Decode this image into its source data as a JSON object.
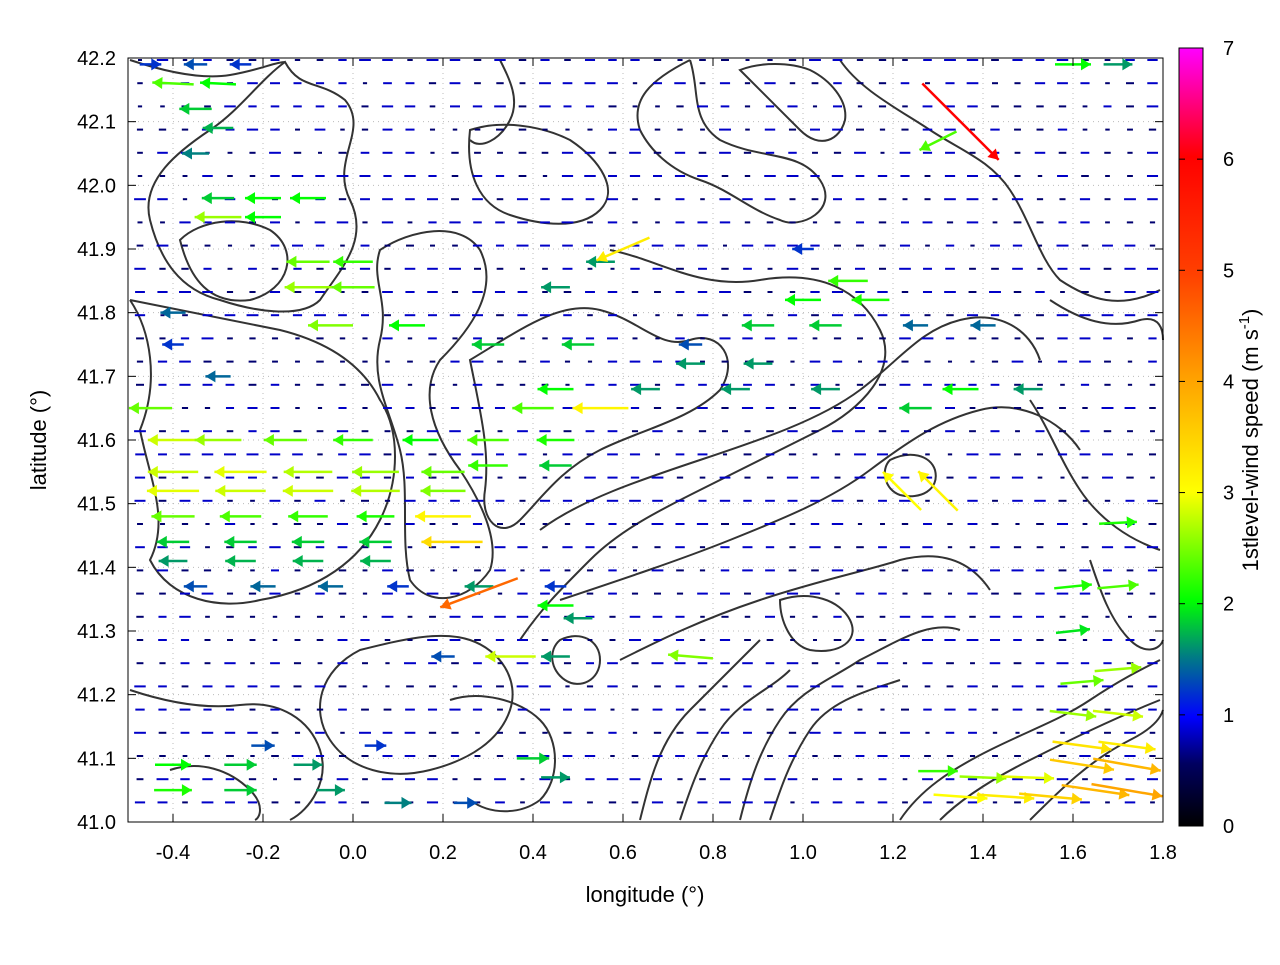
{
  "chart_data": {
    "type": "vector-field",
    "xlabel": "longitude (°)",
    "ylabel": "latitude (°)",
    "colorbar_label": "1stlevel-wind speed (m s",
    "colorbar_label_sup": "-1",
    "colorbar_label_close": ")",
    "xlim": [
      -0.5,
      1.8
    ],
    "ylim": [
      41.0,
      42.2
    ],
    "xticks": [
      "-0.4",
      "-0.2",
      "0.0",
      "0.2",
      "0.4",
      "0.6",
      "0.8",
      "1.0",
      "1.2",
      "1.4",
      "1.6",
      "1.8"
    ],
    "xtick_values": [
      -0.4,
      -0.2,
      0.0,
      0.2,
      0.4,
      0.6,
      0.8,
      1.0,
      1.2,
      1.4,
      1.6,
      1.8
    ],
    "yticks": [
      "41.0",
      "41.1",
      "41.2",
      "41.3",
      "41.4",
      "41.5",
      "41.6",
      "41.7",
      "41.8",
      "41.9",
      "42.0",
      "42.1",
      "42.2"
    ],
    "ytick_values": [
      41.0,
      41.1,
      41.2,
      41.3,
      41.4,
      41.5,
      41.6,
      41.7,
      41.8,
      41.9,
      42.0,
      42.1,
      42.2
    ],
    "colorbar_ticks": [
      "0",
      "1",
      "2",
      "3",
      "4",
      "5",
      "6",
      "7"
    ],
    "colorbar_range": [
      0,
      7
    ],
    "colormap": [
      "#000000",
      "#000080",
      "#0000ff",
      "#008080",
      "#00ff00",
      "#ffff00",
      "#ffa500",
      "#ff4000",
      "#ff0000",
      "#ff00ff"
    ],
    "grid": true,
    "contour_color": "#333333",
    "vectors": [
      {
        "x": -0.45,
        "y": 42.19,
        "u": 1.2,
        "v": 0,
        "s": 1.2
      },
      {
        "x": -0.35,
        "y": 42.19,
        "u": -1.3,
        "v": 0,
        "s": 1.3
      },
      {
        "x": -0.25,
        "y": 42.19,
        "u": -1.2,
        "v": 0,
        "s": 1.2
      },
      {
        "x": -0.4,
        "y": 42.16,
        "u": -2.2,
        "v": 0.1,
        "s": 2.3
      },
      {
        "x": -0.3,
        "y": 42.16,
        "u": -2.0,
        "v": 0.1,
        "s": 2.0
      },
      {
        "x": -0.35,
        "y": 42.12,
        "u": -1.8,
        "v": 0,
        "s": 1.8
      },
      {
        "x": -0.3,
        "y": 42.09,
        "u": -1.6,
        "v": 0,
        "s": 1.7
      },
      {
        "x": -0.35,
        "y": 42.05,
        "u": -1.5,
        "v": 0,
        "s": 1.5
      },
      {
        "x": -0.3,
        "y": 41.98,
        "u": -1.8,
        "v": 0,
        "s": 1.8
      },
      {
        "x": -0.2,
        "y": 41.98,
        "u": -2.0,
        "v": 0,
        "s": 2.0
      },
      {
        "x": -0.1,
        "y": 41.98,
        "u": -2.0,
        "v": 0,
        "s": 2.0
      },
      {
        "x": -0.3,
        "y": 41.95,
        "u": -2.5,
        "v": 0,
        "s": 2.6
      },
      {
        "x": -0.2,
        "y": 41.95,
        "u": -2.0,
        "v": 0,
        "s": 2.0
      },
      {
        "x": -0.1,
        "y": 41.88,
        "u": -2.4,
        "v": 0,
        "s": 2.4
      },
      {
        "x": 0.0,
        "y": 41.88,
        "u": -2.2,
        "v": 0,
        "s": 2.2
      },
      {
        "x": -0.1,
        "y": 41.84,
        "u": -2.6,
        "v": 0,
        "s": 2.6
      },
      {
        "x": 0.0,
        "y": 41.84,
        "u": -2.4,
        "v": 0,
        "s": 2.4
      },
      {
        "x": -0.05,
        "y": 41.78,
        "u": -2.5,
        "v": 0,
        "s": 2.5
      },
      {
        "x": 0.12,
        "y": 41.78,
        "u": -2.0,
        "v": 0,
        "s": 2.0
      },
      {
        "x": -0.4,
        "y": 41.6,
        "u": -2.8,
        "v": 0,
        "s": 2.8
      },
      {
        "x": -0.3,
        "y": 41.6,
        "u": -2.6,
        "v": 0,
        "s": 2.6
      },
      {
        "x": -0.15,
        "y": 41.6,
        "u": -2.4,
        "v": 0,
        "s": 2.4
      },
      {
        "x": 0.0,
        "y": 41.6,
        "u": -2.2,
        "v": 0,
        "s": 2.2
      },
      {
        "x": 0.15,
        "y": 41.6,
        "u": -2.0,
        "v": 0,
        "s": 2.0
      },
      {
        "x": -0.4,
        "y": 41.55,
        "u": -2.8,
        "v": 0,
        "s": 2.8
      },
      {
        "x": -0.25,
        "y": 41.55,
        "u": -2.9,
        "v": 0,
        "s": 2.9
      },
      {
        "x": -0.1,
        "y": 41.55,
        "u": -2.7,
        "v": 0,
        "s": 2.7
      },
      {
        "x": 0.05,
        "y": 41.55,
        "u": -2.6,
        "v": 0,
        "s": 2.6
      },
      {
        "x": 0.2,
        "y": 41.55,
        "u": -2.4,
        "v": 0,
        "s": 2.4
      },
      {
        "x": -0.4,
        "y": 41.52,
        "u": -2.9,
        "v": 0,
        "s": 2.9
      },
      {
        "x": -0.25,
        "y": 41.52,
        "u": -2.8,
        "v": 0,
        "s": 2.8
      },
      {
        "x": -0.1,
        "y": 41.52,
        "u": -2.8,
        "v": 0,
        "s": 2.8
      },
      {
        "x": 0.05,
        "y": 41.52,
        "u": -2.7,
        "v": 0,
        "s": 2.7
      },
      {
        "x": 0.2,
        "y": 41.52,
        "u": -2.5,
        "v": 0,
        "s": 2.5
      },
      {
        "x": -0.4,
        "y": 41.48,
        "u": -2.4,
        "v": 0,
        "s": 2.4
      },
      {
        "x": -0.25,
        "y": 41.48,
        "u": -2.3,
        "v": 0,
        "s": 2.3
      },
      {
        "x": -0.1,
        "y": 41.48,
        "u": -2.2,
        "v": 0,
        "s": 2.2
      },
      {
        "x": 0.05,
        "y": 41.48,
        "u": -2.1,
        "v": 0,
        "s": 2.1
      },
      {
        "x": 0.2,
        "y": 41.48,
        "u": -3.1,
        "v": 0,
        "s": 3.1
      },
      {
        "x": -0.4,
        "y": 41.44,
        "u": -1.8,
        "v": 0,
        "s": 1.8
      },
      {
        "x": -0.25,
        "y": 41.44,
        "u": -1.8,
        "v": 0,
        "s": 1.8
      },
      {
        "x": -0.1,
        "y": 41.44,
        "u": -1.8,
        "v": 0,
        "s": 1.8
      },
      {
        "x": 0.05,
        "y": 41.44,
        "u": -1.8,
        "v": 0,
        "s": 1.8
      },
      {
        "x": 0.22,
        "y": 41.44,
        "u": -3.3,
        "v": 0,
        "s": 3.4
      },
      {
        "x": -0.4,
        "y": 41.41,
        "u": -1.6,
        "v": 0,
        "s": 1.6
      },
      {
        "x": -0.25,
        "y": 41.41,
        "u": -1.7,
        "v": 0,
        "s": 1.7
      },
      {
        "x": -0.1,
        "y": 41.41,
        "u": -1.7,
        "v": 0,
        "s": 1.7
      },
      {
        "x": 0.05,
        "y": 41.41,
        "u": -1.7,
        "v": 0,
        "s": 1.7
      },
      {
        "x": -0.35,
        "y": 41.37,
        "u": -1.3,
        "v": 0,
        "s": 1.3
      },
      {
        "x": -0.2,
        "y": 41.37,
        "u": -1.4,
        "v": 0,
        "s": 1.4
      },
      {
        "x": -0.05,
        "y": 41.37,
        "u": -1.4,
        "v": 0,
        "s": 1.4
      },
      {
        "x": 0.1,
        "y": 41.37,
        "u": -1.2,
        "v": 0,
        "s": 1.2
      },
      {
        "x": 0.28,
        "y": 41.37,
        "u": -1.6,
        "v": 0,
        "s": 1.6
      },
      {
        "x": 0.45,
        "y": 41.37,
        "u": -1.2,
        "v": 0,
        "s": 1.2
      },
      {
        "x": 0.28,
        "y": 41.36,
        "u": -1.6,
        "v": -0.6,
        "s": 4.6
      },
      {
        "x": 0.3,
        "y": 41.75,
        "u": -1.8,
        "v": 0,
        "s": 1.8
      },
      {
        "x": 0.5,
        "y": 41.75,
        "u": -1.8,
        "v": 0,
        "s": 1.8
      },
      {
        "x": 0.45,
        "y": 41.68,
        "u": -2.0,
        "v": 0,
        "s": 2.0
      },
      {
        "x": 0.65,
        "y": 41.68,
        "u": -1.6,
        "v": 0,
        "s": 1.6
      },
      {
        "x": 0.4,
        "y": 41.65,
        "u": -2.3,
        "v": 0,
        "s": 2.3
      },
      {
        "x": 0.55,
        "y": 41.65,
        "u": -3.0,
        "v": 0,
        "s": 3.1
      },
      {
        "x": 0.3,
        "y": 41.6,
        "u": -2.3,
        "v": 0,
        "s": 2.3
      },
      {
        "x": 0.45,
        "y": 41.6,
        "u": -2.1,
        "v": 0,
        "s": 2.1
      },
      {
        "x": 0.3,
        "y": 41.56,
        "u": -2.2,
        "v": 0,
        "s": 2.2
      },
      {
        "x": 0.45,
        "y": 41.56,
        "u": -1.8,
        "v": 0,
        "s": 1.8
      },
      {
        "x": 0.55,
        "y": 41.88,
        "u": -1.6,
        "v": 0,
        "s": 1.6
      },
      {
        "x": 0.45,
        "y": 41.84,
        "u": -1.6,
        "v": 0,
        "s": 1.6
      },
      {
        "x": 0.6,
        "y": 41.9,
        "u": -0.7,
        "v": -0.3,
        "s": 3.2
      },
      {
        "x": 0.75,
        "y": 41.75,
        "u": -1.3,
        "v": 0,
        "s": 1.3
      },
      {
        "x": 0.75,
        "y": 41.72,
        "u": -1.6,
        "v": 0,
        "s": 1.6
      },
      {
        "x": 0.9,
        "y": 41.72,
        "u": -1.6,
        "v": 0,
        "s": 1.6
      },
      {
        "x": 0.85,
        "y": 41.68,
        "u": -1.6,
        "v": 0,
        "s": 1.6
      },
      {
        "x": 1.05,
        "y": 41.68,
        "u": -1.6,
        "v": 0,
        "s": 1.6
      },
      {
        "x": 0.9,
        "y": 41.78,
        "u": -1.8,
        "v": 0,
        "s": 1.8
      },
      {
        "x": 1.05,
        "y": 41.78,
        "u": -1.8,
        "v": 0,
        "s": 1.8
      },
      {
        "x": 1.25,
        "y": 41.78,
        "u": -1.4,
        "v": 0,
        "s": 1.4
      },
      {
        "x": 1.4,
        "y": 41.78,
        "u": -1.4,
        "v": 0,
        "s": 1.4
      },
      {
        "x": 1.0,
        "y": 41.82,
        "u": -2.0,
        "v": 0,
        "s": 2.0
      },
      {
        "x": 1.15,
        "y": 41.82,
        "u": -2.1,
        "v": 0,
        "s": 2.1
      },
      {
        "x": 1.0,
        "y": 41.9,
        "u": -1.2,
        "v": 0,
        "s": 1.2
      },
      {
        "x": 1.1,
        "y": 41.85,
        "u": -2.2,
        "v": 0,
        "s": 2.2
      },
      {
        "x": 1.25,
        "y": 41.65,
        "u": -1.8,
        "v": 0,
        "s": 1.8
      },
      {
        "x": 1.35,
        "y": 41.68,
        "u": -2.0,
        "v": 0,
        "s": 2.0
      },
      {
        "x": 1.5,
        "y": 41.68,
        "u": -1.6,
        "v": 0,
        "s": 1.6
      },
      {
        "x": 1.35,
        "y": 42.1,
        "u": 0.6,
        "v": -0.6,
        "s": 6.0
      },
      {
        "x": 1.3,
        "y": 42.07,
        "u": -0.2,
        "v": -0.1,
        "s": 2.3
      },
      {
        "x": 1.3,
        "y": 41.52,
        "u": -0.2,
        "v": 0.2,
        "s": 3.1
      },
      {
        "x": 1.22,
        "y": 41.52,
        "u": -0.2,
        "v": 0.2,
        "s": 3.0
      },
      {
        "x": -0.4,
        "y": 41.09,
        "u": 2.0,
        "v": 0,
        "s": 2.0
      },
      {
        "x": -0.25,
        "y": 41.09,
        "u": 1.8,
        "v": 0,
        "s": 1.8
      },
      {
        "x": -0.1,
        "y": 41.09,
        "u": 1.6,
        "v": 0,
        "s": 1.6
      },
      {
        "x": -0.4,
        "y": 41.05,
        "u": 2.1,
        "v": 0,
        "s": 2.1
      },
      {
        "x": -0.25,
        "y": 41.05,
        "u": 1.8,
        "v": 0,
        "s": 1.8
      },
      {
        "x": -0.05,
        "y": 41.05,
        "u": 1.6,
        "v": 0,
        "s": 1.6
      },
      {
        "x": 0.1,
        "y": 41.03,
        "u": 1.5,
        "v": 0,
        "s": 1.5
      },
      {
        "x": 0.25,
        "y": 41.03,
        "u": 1.3,
        "v": 0,
        "s": 1.3
      },
      {
        "x": 0.05,
        "y": 41.12,
        "u": 1.2,
        "v": 0,
        "s": 1.2
      },
      {
        "x": -0.2,
        "y": 41.12,
        "u": 1.3,
        "v": 0,
        "s": 1.3
      },
      {
        "x": 0.4,
        "y": 41.1,
        "u": 1.8,
        "v": 0,
        "s": 1.8
      },
      {
        "x": 0.45,
        "y": 41.07,
        "u": 1.6,
        "v": 0,
        "s": 1.6
      },
      {
        "x": 1.3,
        "y": 41.08,
        "u": 2.2,
        "v": 0,
        "s": 2.2
      },
      {
        "x": 1.4,
        "y": 41.07,
        "u": 2.5,
        "v": -0.1,
        "s": 2.6
      },
      {
        "x": 1.5,
        "y": 41.07,
        "u": 2.8,
        "v": -0.1,
        "s": 2.9
      },
      {
        "x": 1.35,
        "y": 41.04,
        "u": 2.8,
        "v": -0.2,
        "s": 3.0
      },
      {
        "x": 1.45,
        "y": 41.04,
        "u": 3.0,
        "v": -0.2,
        "s": 3.2
      },
      {
        "x": 1.55,
        "y": 41.04,
        "u": 3.2,
        "v": -0.3,
        "s": 3.5
      },
      {
        "x": 1.65,
        "y": 41.05,
        "u": 3.4,
        "v": -0.5,
        "s": 3.8
      },
      {
        "x": 1.72,
        "y": 41.05,
        "u": 3.5,
        "v": -0.6,
        "s": 4.0
      },
      {
        "x": 1.62,
        "y": 41.09,
        "u": 3.2,
        "v": -0.5,
        "s": 3.6
      },
      {
        "x": 1.72,
        "y": 41.09,
        "u": 3.4,
        "v": -0.6,
        "s": 3.8
      },
      {
        "x": 1.62,
        "y": 41.12,
        "u": 3.0,
        "v": -0.4,
        "s": 3.3
      },
      {
        "x": 1.72,
        "y": 41.12,
        "u": 3.0,
        "v": -0.4,
        "s": 3.2
      },
      {
        "x": 1.6,
        "y": 41.17,
        "u": 2.5,
        "v": -0.3,
        "s": 2.6
      },
      {
        "x": 1.7,
        "y": 41.17,
        "u": 2.6,
        "v": -0.3,
        "s": 2.8
      },
      {
        "x": 1.62,
        "y": 41.22,
        "u": 2.3,
        "v": 0.2,
        "s": 2.4
      },
      {
        "x": 1.7,
        "y": 41.24,
        "u": 2.4,
        "v": 0.2,
        "s": 2.6
      },
      {
        "x": 1.6,
        "y": 41.3,
        "u": 1.8,
        "v": 0.2,
        "s": 1.9
      },
      {
        "x": 1.6,
        "y": 41.37,
        "u": 2.0,
        "v": 0.2,
        "s": 2.1
      },
      {
        "x": 1.7,
        "y": 41.37,
        "u": 2.2,
        "v": 0.2,
        "s": 2.3
      },
      {
        "x": 1.7,
        "y": 41.47,
        "u": 2.0,
        "v": 0.1,
        "s": 2.1
      },
      {
        "x": 1.6,
        "y": 42.19,
        "u": 2.0,
        "v": 0,
        "s": 2.0
      },
      {
        "x": 1.7,
        "y": 42.19,
        "u": 1.6,
        "v": 0,
        "s": 1.6
      },
      {
        "x": 0.75,
        "y": 41.26,
        "u": -1.2,
        "v": 0.1,
        "s": 2.5
      },
      {
        "x": 0.45,
        "y": 41.26,
        "u": -1.6,
        "v": 0,
        "s": 1.6
      },
      {
        "x": 0.35,
        "y": 41.26,
        "u": -1.8,
        "v": 0,
        "s": 2.8
      },
      {
        "x": 0.2,
        "y": 41.26,
        "u": -1.3,
        "v": 0,
        "s": 1.3
      },
      {
        "x": 0.5,
        "y": 41.32,
        "u": -1.6,
        "v": 0,
        "s": 1.6
      },
      {
        "x": 0.45,
        "y": 41.34,
        "u": -1.4,
        "v": 0,
        "s": 2.0
      },
      {
        "x": -0.4,
        "y": 41.75,
        "u": -1.2,
        "v": 0,
        "s": 1.2
      },
      {
        "x": -0.3,
        "y": 41.7,
        "u": -1.4,
        "v": 0,
        "s": 1.4
      },
      {
        "x": -0.45,
        "y": 41.65,
        "u": -1.6,
        "v": 0,
        "s": 2.4
      },
      {
        "x": -0.4,
        "y": 41.8,
        "u": -1.2,
        "v": 0,
        "s": 1.4
      }
    ]
  }
}
